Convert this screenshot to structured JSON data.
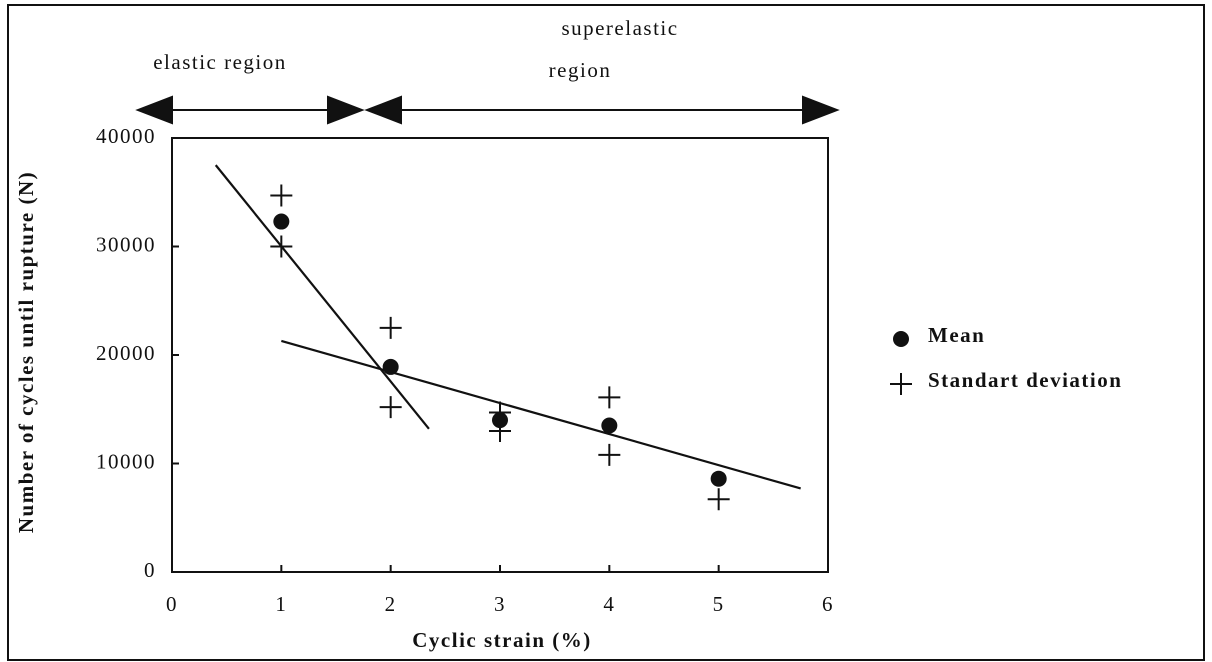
{
  "chart_data": {
    "type": "scatter",
    "xlabel": "Cyclic strain (%)",
    "ylabel": "Number of cycles until rupture (N)",
    "xlim": [
      0,
      6
    ],
    "xticks": [
      0,
      1,
      2,
      3,
      4,
      5,
      6
    ],
    "ylim": [
      0,
      40000
    ],
    "yticks": [
      0,
      10000,
      20000,
      30000,
      40000
    ],
    "legend": "right",
    "series": [
      {
        "name": "Mean",
        "marker": "dot",
        "color": "#111111",
        "x": [
          1,
          2,
          3,
          4,
          5
        ],
        "values": [
          32300,
          18900,
          14000,
          13500,
          8600
        ]
      },
      {
        "name": "Standart deviation",
        "marker": "plus",
        "color": "#111111",
        "x": [
          1,
          1,
          2,
          2,
          3,
          3,
          4,
          4,
          5
        ],
        "values": [
          34700,
          30000,
          22500,
          15200,
          14700,
          13000,
          16100,
          10800,
          6700
        ]
      }
    ],
    "fit_lines": [
      {
        "color": "#111111",
        "x": [
          0.4,
          2.35
        ],
        "values": [
          37500,
          13200
        ]
      },
      {
        "color": "#111111",
        "x": [
          1,
          5.75
        ],
        "values": [
          21300,
          7700
        ]
      }
    ],
    "annotations": {
      "left": [
        "elastic region"
      ],
      "right": [
        "superelastic",
        "region"
      ]
    }
  }
}
